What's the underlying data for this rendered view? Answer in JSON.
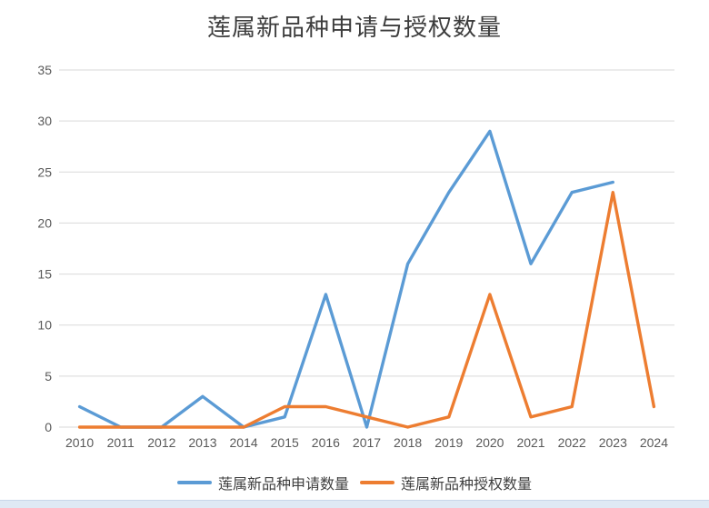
{
  "chart": {
    "title": "莲属新品种申请与授权数量"
  },
  "chart_data": {
    "type": "line",
    "title": "莲属新品种申请与授权数量",
    "categories": [
      "2010",
      "2011",
      "2012",
      "2013",
      "2014",
      "2015",
      "2016",
      "2017",
      "2018",
      "2019",
      "2020",
      "2021",
      "2022",
      "2023",
      "2024"
    ],
    "series": [
      {
        "id": "applications",
        "name": "莲属新品种申请数量",
        "color": "#5B9BD5",
        "values": [
          2,
          0,
          0,
          3,
          0,
          1,
          13,
          0,
          16,
          23,
          29,
          16,
          23,
          24,
          null
        ]
      },
      {
        "id": "authorizations",
        "name": "莲属新品种授权数量",
        "color": "#ED7D31",
        "values": [
          0,
          0,
          0,
          0,
          0,
          2,
          2,
          1,
          0,
          1,
          13,
          1,
          2,
          23,
          2
        ]
      }
    ],
    "xlabel": "",
    "ylabel": "",
    "y_axis": {
      "min": 0,
      "max": 35,
      "step": 5,
      "tick_labels": [
        "0",
        "5",
        "10",
        "15",
        "20",
        "25",
        "30",
        "35"
      ]
    },
    "grid": true,
    "legend_position": "bottom",
    "colors": {
      "gridline": "#d9d9d9",
      "axis_label": "#595959",
      "title_text": "#3d3d3d",
      "legend_text": "#3f3f3f",
      "bottom_strip": "#dfe9f4"
    }
  }
}
